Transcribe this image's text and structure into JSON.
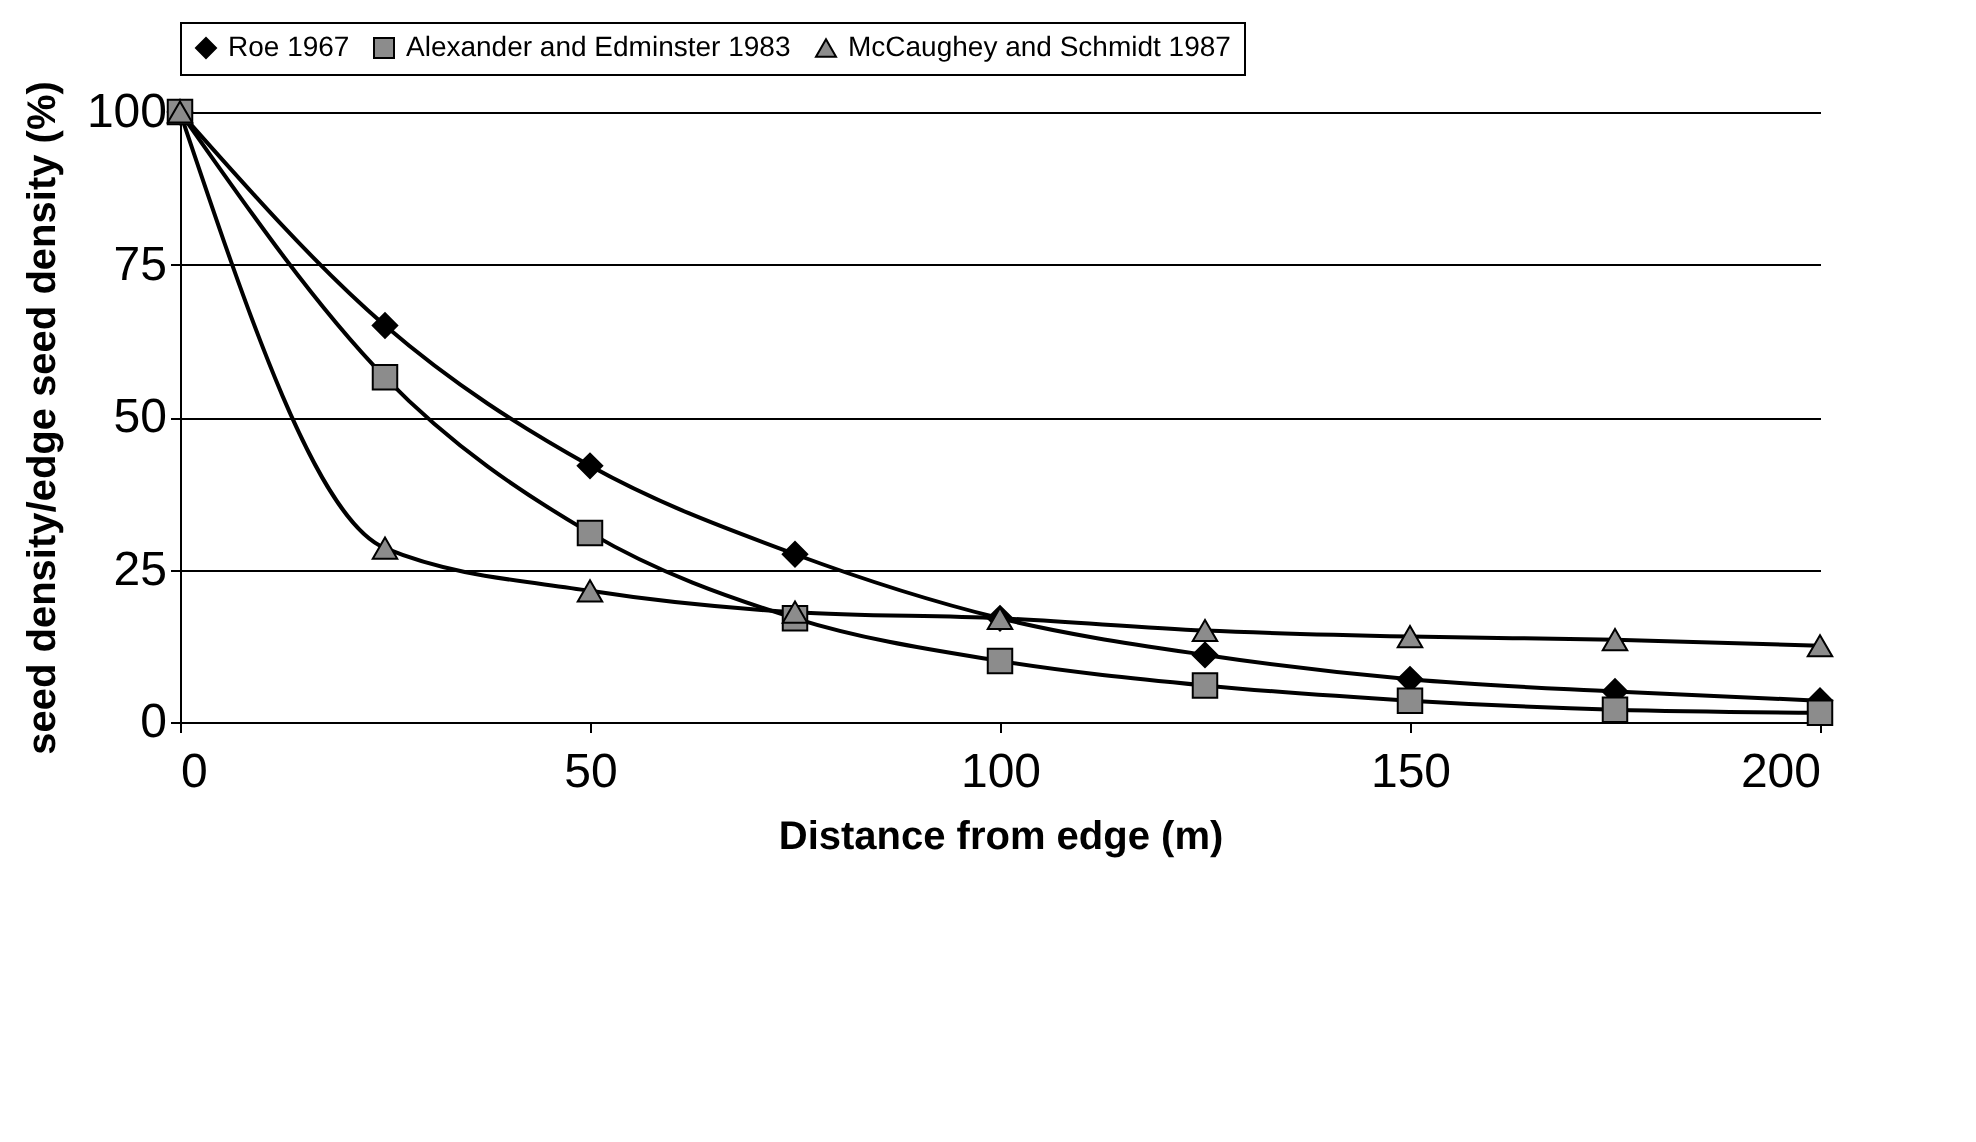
{
  "chart_data": {
    "type": "line",
    "xlabel": "Distance from edge (m)",
    "ylabel": "seed density/edge seed density (%)",
    "x": [
      0,
      25,
      50,
      75,
      100,
      125,
      150,
      175,
      200
    ],
    "series": [
      {
        "name": "Roe 1967",
        "color": "#000000",
        "marker": "diamond",
        "values": [
          100,
          65,
          42,
          27.5,
          17,
          11,
          7,
          5,
          3.5
        ]
      },
      {
        "name": "Alexander and Edminster 1983",
        "color": "#8c8c8c",
        "marker": "square",
        "values": [
          100,
          56.5,
          31,
          17,
          10,
          6,
          3.5,
          2,
          1.5
        ]
      },
      {
        "name": "McCaughey and Schmidt 1987",
        "color": "#8c8c8c",
        "marker": "triangle",
        "values": [
          100,
          28.5,
          21.5,
          18,
          17,
          15,
          14,
          13.5,
          12.5
        ]
      }
    ],
    "xlim": [
      0,
      200
    ],
    "xticks": [
      0,
      50,
      100,
      150,
      200
    ],
    "ylim": [
      0,
      100
    ],
    "yticks": [
      0,
      25,
      50,
      75,
      100
    ],
    "grid": "y",
    "legend": "top",
    "line_style": "solid"
  }
}
